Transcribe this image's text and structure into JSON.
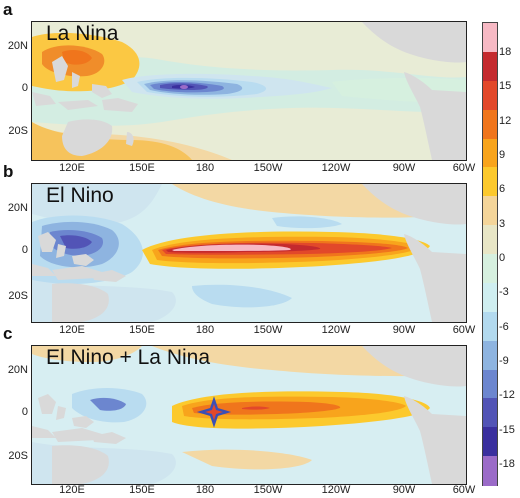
{
  "panels": [
    {
      "letter": "a",
      "title": "La Nina"
    },
    {
      "letter": "b",
      "title": "El Nino"
    },
    {
      "letter": "c",
      "title": "El Nino + La Nina"
    }
  ],
  "y_labels": [
    "20N",
    "0",
    "20S"
  ],
  "x_labels": [
    "120E",
    "150E",
    "180",
    "150W",
    "120W",
    "90W",
    "60W"
  ],
  "colorbar": {
    "ticks": [
      "18",
      "15",
      "12",
      "9",
      "6",
      "3",
      "0",
      "-3",
      "-6",
      "-9",
      "-12",
      "-15",
      "-18"
    ],
    "colors": [
      "#f7b9c4",
      "#c42a2e",
      "#e2482a",
      "#f0751c",
      "#f8a41c",
      "#fcc92d",
      "#f4d59a",
      "#e8e6c6",
      "#d6f0df",
      "#cfeef0",
      "#b2d9ee",
      "#8eb4e0",
      "#6c86cf",
      "#5254b6",
      "#3a2f9e",
      "#9b6bc8"
    ]
  },
  "colors": {
    "land": "#d9d9d9",
    "ocean_neutral": "#d7eef2",
    "warm_light": "#f6dca6",
    "warm": "#fcc92d",
    "orange": "#f8a41c",
    "dark_orange": "#f0751c",
    "red": "#d93c2b",
    "pink": "#f7b9c4",
    "cool_light": "#b9dcf0",
    "cool": "#8eb4e0",
    "blue": "#6c86cf",
    "dark_blue": "#3a2f9e",
    "purple": "#9b6bc8",
    "marker": "#3b4fb5"
  }
}
